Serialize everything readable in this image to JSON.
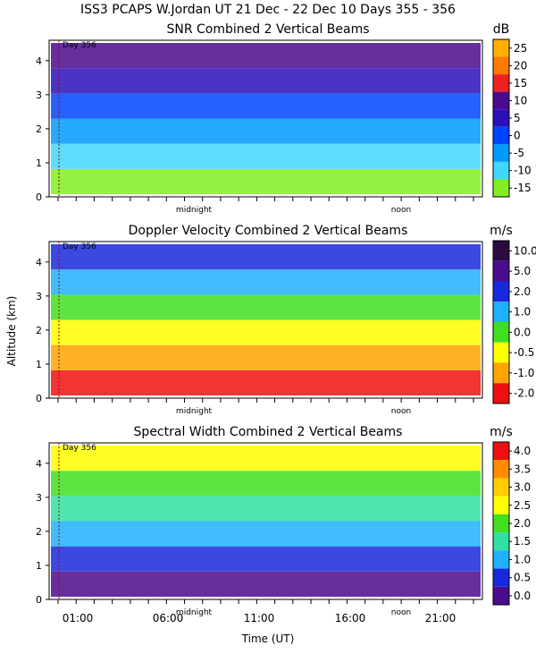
{
  "header": "ISS3 PCAPS W.Jordan UT  21 Dec - 22 Dec 10 Days 355 - 356",
  "chart_data": [
    {
      "type": "heatmap",
      "title": "SNR Combined 2 Vertical Beams",
      "unit": "dB",
      "ylim": [
        0,
        4.6
      ],
      "yticks": [
        "0",
        "1",
        "2",
        "3",
        "4"
      ],
      "day_label": "Day 356",
      "midnight_label": "midnight",
      "noon_label": "noon",
      "colorbar": {
        "labels": [
          "25",
          "20",
          "15",
          "10",
          "5",
          "0",
          "-5",
          "-10",
          "-15"
        ],
        "colors": [
          "#ffb000",
          "#ff7a00",
          "#ee2020",
          "#4a0c8c",
          "#2a10b8",
          "#0044ff",
          "#009bff",
          "#3fd6ff",
          "#80ee20"
        ]
      }
    },
    {
      "type": "heatmap",
      "title": "Doppler Velocity Combined 2 Vertical Beams",
      "unit": "m/s",
      "ylabel": "Altitude (km)",
      "ylim": [
        0,
        4.6
      ],
      "yticks": [
        "0",
        "1",
        "2",
        "3",
        "4"
      ],
      "day_label": "Day 356",
      "midnight_label": "midnight",
      "noon_label": "noon",
      "colorbar": {
        "labels": [
          "10.0",
          "5.0",
          "2.0",
          "1.0",
          "0.0",
          "-0.5",
          "-1.0",
          "-2.0"
        ],
        "colors": [
          "#2a0b40",
          "#4a0c8c",
          "#1a28dd",
          "#1fb0ff",
          "#40e020",
          "#ffff00",
          "#ffa500",
          "#ee1010"
        ]
      }
    },
    {
      "type": "heatmap",
      "title": "Spectral Width Combined 2 Vertical Beams",
      "unit": "m/s",
      "xlabel": "Time (UT)",
      "ylim": [
        0,
        4.6
      ],
      "yticks": [
        "0",
        "1",
        "2",
        "3",
        "4"
      ],
      "xticks": [
        "01:00",
        "06:00",
        "11:00",
        "16:00",
        "21:00"
      ],
      "day_label": "Day 356",
      "midnight_label": "midnight",
      "noon_label": "noon",
      "colorbar": {
        "labels": [
          "4.0",
          "3.5",
          "3.0",
          "2.5",
          "2.0",
          "1.5",
          "1.0",
          "0.5",
          "0.0"
        ],
        "colors": [
          "#ee1010",
          "#ff8c00",
          "#ffcc00",
          "#ffff00",
          "#40e020",
          "#30e0a0",
          "#1fb0ff",
          "#1a28dd",
          "#4a0c8c"
        ]
      }
    }
  ]
}
